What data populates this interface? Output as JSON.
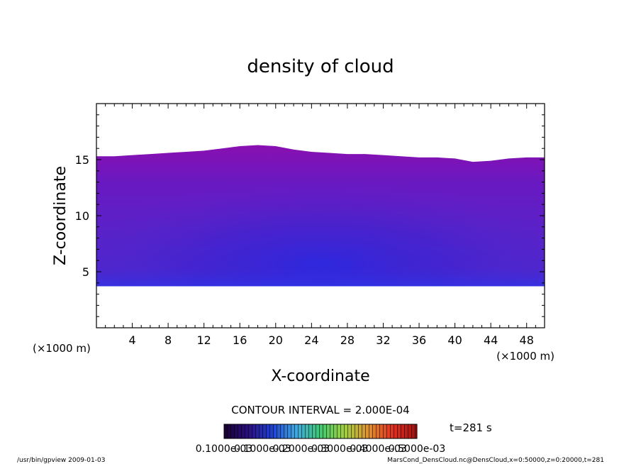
{
  "chart_data": {
    "type": "heatmap",
    "title": "density of cloud",
    "xlabel": "X-coordinate",
    "ylabel": "Z-coordinate",
    "x_unit": "(×1000 m)",
    "y_unit": "(×1000 m)",
    "xlim": [
      0,
      50
    ],
    "ylim": [
      0,
      20
    ],
    "x_ticks": [
      4,
      8,
      12,
      16,
      20,
      24,
      28,
      32,
      36,
      40,
      44,
      48
    ],
    "y_ticks": [
      5,
      10,
      15
    ],
    "cloud_base_km": 3.7,
    "cloud_top_km": [
      [
        0,
        15.3
      ],
      [
        2,
        15.3
      ],
      [
        4,
        15.4
      ],
      [
        6,
        15.5
      ],
      [
        8,
        15.6
      ],
      [
        10,
        15.7
      ],
      [
        12,
        15.8
      ],
      [
        14,
        16.0
      ],
      [
        16,
        16.2
      ],
      [
        18,
        16.3
      ],
      [
        20,
        16.2
      ],
      [
        22,
        15.9
      ],
      [
        24,
        15.7
      ],
      [
        26,
        15.6
      ],
      [
        28,
        15.5
      ],
      [
        30,
        15.5
      ],
      [
        32,
        15.4
      ],
      [
        34,
        15.3
      ],
      [
        36,
        15.2
      ],
      [
        38,
        15.2
      ],
      [
        40,
        15.1
      ],
      [
        42,
        14.8
      ],
      [
        44,
        14.9
      ],
      [
        46,
        15.1
      ],
      [
        48,
        15.2
      ],
      [
        50,
        15.2
      ]
    ],
    "contour_interval": "CONTOUR INTERVAL = 2.000E-04",
    "time_label": "t=281 s",
    "colorbar_labels": [
      "0.1000e-03",
      "0.1000e-03",
      "0.2000e-03",
      "0.3000e-03",
      "0.4000e-03",
      "0.5000e-03"
    ],
    "colorbar_colors": [
      "#1a0030",
      "#2a1080",
      "#2040d0",
      "#40a8e0",
      "#40c870",
      "#a0d040",
      "#e09030",
      "#e03020",
      "#a01010"
    ],
    "fill_colors": {
      "top": "#8a10b0",
      "mid": "#5a22c8",
      "core": "#3a20d8",
      "base": "#2030e8"
    }
  },
  "footer": {
    "left": "/usr/bin/gpview   2009-01-03",
    "right": "MarsCond_DensCloud.nc@DensCloud,x=0:50000,z=0:20000,t=281"
  }
}
